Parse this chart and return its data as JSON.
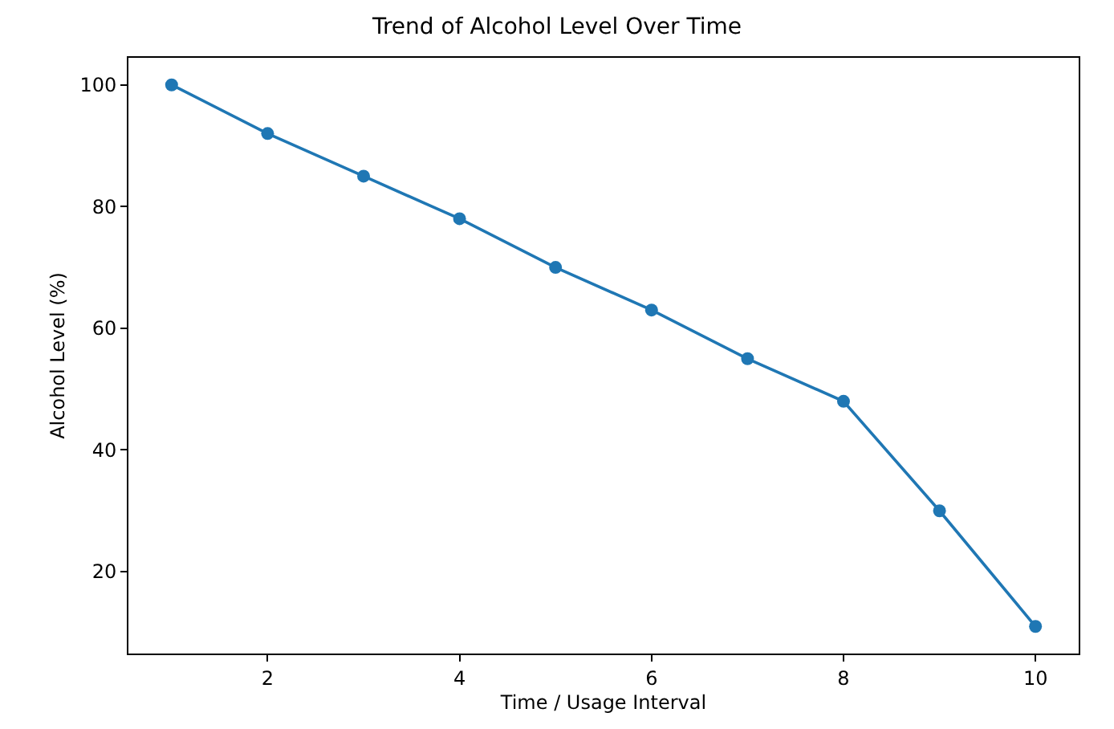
{
  "chart_data": {
    "type": "line",
    "title": "Trend of Alcohol Level Over Time",
    "xlabel": "Time / Usage Interval",
    "ylabel": "Alcohol Level (%)",
    "x": [
      1,
      2,
      3,
      4,
      5,
      6,
      7,
      8,
      9,
      10
    ],
    "series": [
      {
        "color": "#1f77b4",
        "values": [
          100,
          92,
          85,
          78,
          70,
          63,
          55,
          48,
          30,
          11
        ]
      }
    ],
    "xlim": [
      0.55,
      10.45
    ],
    "xticks": [
      2,
      4,
      6,
      8,
      10
    ],
    "ylim": [
      6.55,
      104.45
    ],
    "yticks": [
      20,
      40,
      60,
      80,
      100
    ],
    "marker": "circle",
    "line_style": "solid"
  }
}
